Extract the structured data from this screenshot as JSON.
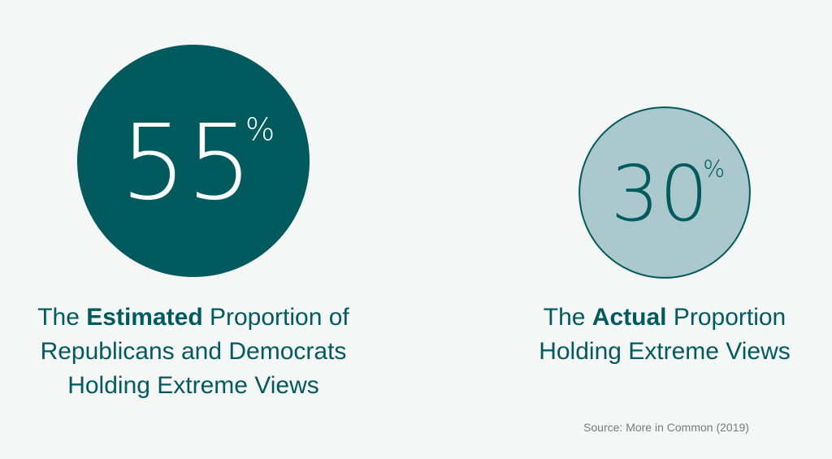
{
  "chart_data": {
    "type": "bubble",
    "values": [
      55,
      30
    ],
    "unit": "%",
    "categories": [
      [
        "The ",
        "Estimated",
        " Proportion of Republicans and Democrats Holding Extreme Views"
      ],
      [
        "The ",
        "Actual",
        " Proportion Holding Extreme Views"
      ]
    ],
    "series_colors": [
      {
        "fill": "#005a5e",
        "stroke": "#005a5e",
        "text": "#ffffff"
      },
      {
        "fill": "#abc9cc",
        "stroke": "#005a5e",
        "text": "#005a5e"
      }
    ],
    "source": "Source: More in Common (2019)"
  }
}
